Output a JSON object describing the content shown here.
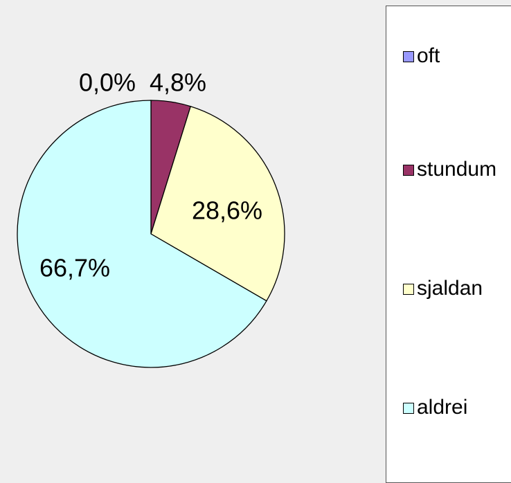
{
  "chart_data": {
    "type": "pie",
    "categories": [
      "oft",
      "stundum",
      "sjaldan",
      "aldrei"
    ],
    "values": [
      0.0,
      4.8,
      28.6,
      66.7
    ],
    "value_labels": [
      "0,0%",
      "4,8%",
      "28,6%",
      "66,7%"
    ],
    "colors": [
      "#9999ff",
      "#993366",
      "#ffffcc",
      "#ccffff"
    ],
    "legend": "right"
  }
}
